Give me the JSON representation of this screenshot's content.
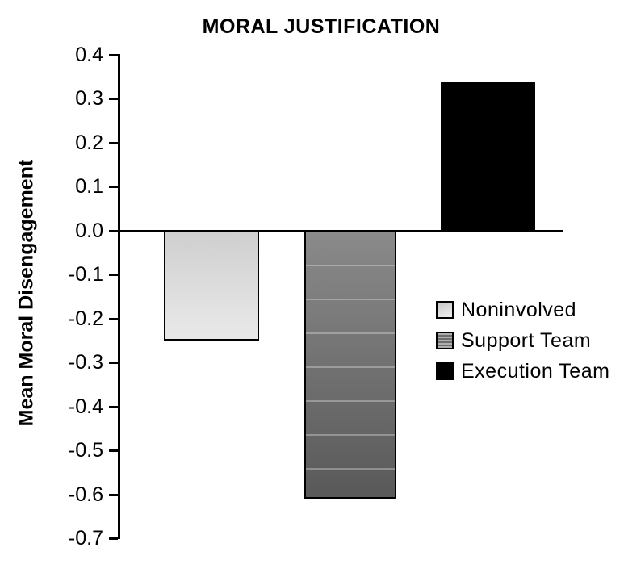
{
  "title": "MORAL JUSTIFICATION",
  "y_axis": {
    "label": "Mean Moral Disengagement",
    "tick_labels": [
      "0.4",
      "0.3",
      "0.2",
      "0.1",
      "0.0",
      "-0.1",
      "-0.2",
      "-0.3",
      "-0.4",
      "-0.5",
      "-0.6",
      "-0.7"
    ]
  },
  "legend": {
    "items": [
      {
        "label": "Noninvolved",
        "swatch": "light-gray-gradient",
        "color": "#d9d9d9"
      },
      {
        "label": "Support Team",
        "swatch": "gray-striped",
        "color": "#707070"
      },
      {
        "label": "Execution Team",
        "swatch": "black-solid",
        "color": "#000000"
      }
    ]
  },
  "chart_data": {
    "type": "bar",
    "title": "MORAL JUSTIFICATION",
    "categories": [
      "Noninvolved",
      "Support Team",
      "Execution Team"
    ],
    "values": [
      -0.25,
      -0.61,
      0.34
    ],
    "xlabel": "",
    "ylabel": "Mean Moral Disengagement",
    "ylim": [
      -0.7,
      0.4
    ],
    "ytick_step": 0.1,
    "baseline": 0,
    "grid": false,
    "legend_position": "center-right",
    "bar_colors": [
      "#d9d9d9",
      "#707070",
      "#000000"
    ],
    "bar_border_color": "#000000"
  }
}
